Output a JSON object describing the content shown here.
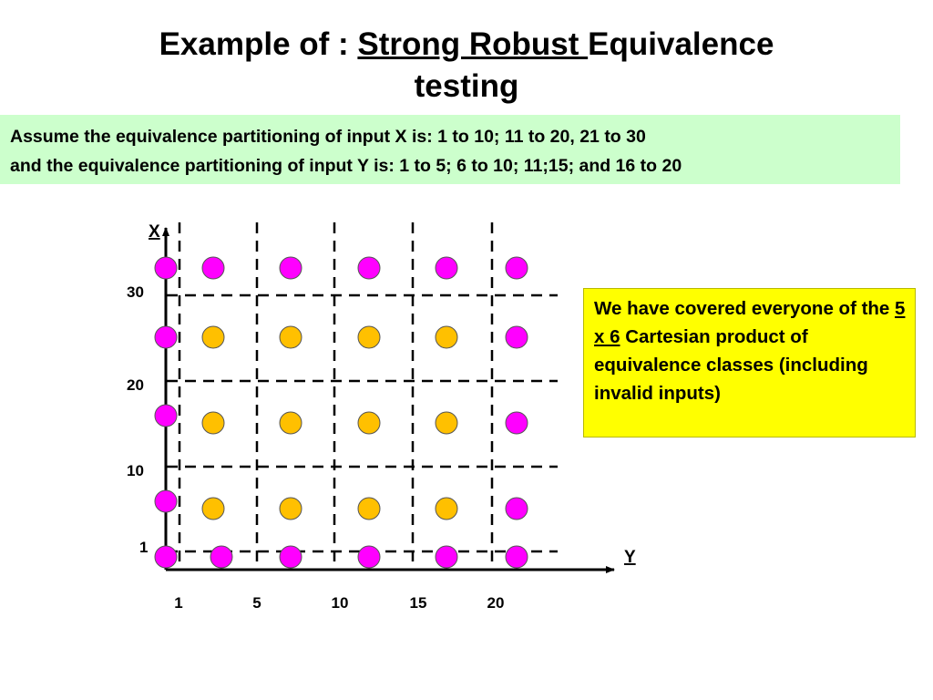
{
  "title": {
    "prefix": "Example of : ",
    "underlined": "Strong Robust ",
    "rest": "Equivalence",
    "line2": "testing"
  },
  "assumption": {
    "line1": "Assume the equivalence partitioning of input X is:  1 to 10; 11 to 20, 21 to 30",
    "line2": "and the equivalence partitioning of input Y is: 1 to 5; 6 to 10; 11;15; and 16 to 20"
  },
  "note": {
    "part1": "We have covered everyone of the ",
    "underlined": "5 x 6",
    "part2": " Cartesian product of equivalence classes (including invalid inputs)"
  },
  "axes": {
    "x_axis_label": "X",
    "y_axis_label": "Y",
    "x_ticks": [
      "30",
      "20",
      "10",
      "1"
    ],
    "y_ticks": [
      "1",
      "5",
      "10",
      "15",
      "20"
    ]
  },
  "colors": {
    "invalid": "#ff00ff",
    "valid": "#ffc000",
    "note_bg": "#ffff00",
    "assumption_bg": "#ccffcc"
  },
  "test_points": {
    "rows": [
      [
        "invalid",
        "invalid",
        "invalid",
        "invalid",
        "invalid",
        "invalid"
      ],
      [
        "invalid",
        "valid",
        "valid",
        "valid",
        "valid",
        "invalid"
      ],
      [
        "invalid",
        "valid",
        "valid",
        "valid",
        "valid",
        "invalid"
      ],
      [
        "invalid",
        "valid",
        "valid",
        "valid",
        "valid",
        "invalid"
      ],
      [
        "invalid",
        "invalid",
        "invalid",
        "invalid",
        "invalid",
        "invalid"
      ]
    ]
  }
}
